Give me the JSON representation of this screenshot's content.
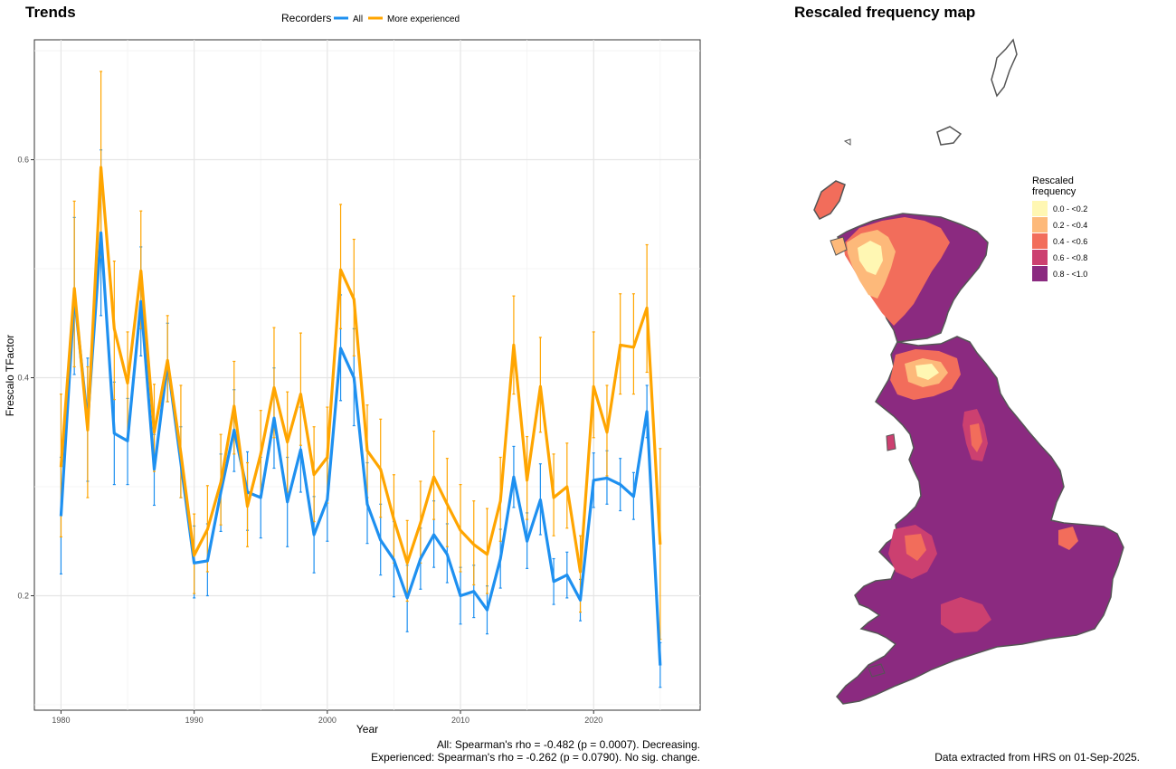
{
  "trends": {
    "title": "Trends",
    "legend_title": "Recorders",
    "caption_line1": "All: Spearman's rho = -0.482 (p = 0.0007). Decreasing.",
    "caption_line2": "Experienced: Spearman's rho = -0.262 (p = 0.0790). No sig. change."
  },
  "chart_data": {
    "type": "line",
    "xlabel": "Year",
    "ylabel": "Frescalo TFactor",
    "xlim": [
      1978,
      2028
    ],
    "ylim": [
      0.095,
      0.71
    ],
    "x_ticks": [
      1980,
      1990,
      2000,
      2010,
      2020
    ],
    "y_ticks": [
      0.2,
      0.4,
      0.6
    ],
    "y_tick_labels": [
      "0.2",
      "0.4",
      "0.6"
    ],
    "grid": true,
    "legend_position": "top",
    "x": [
      1980,
      1981,
      1982,
      1983,
      1984,
      1985,
      1986,
      1987,
      1988,
      1989,
      1990,
      1991,
      1992,
      1993,
      1994,
      1995,
      1996,
      1997,
      1998,
      1999,
      2000,
      2001,
      2002,
      2003,
      2004,
      2005,
      2006,
      2007,
      2008,
      2009,
      2010,
      2011,
      2012,
      2013,
      2014,
      2015,
      2016,
      2017,
      2018,
      2019,
      2020,
      2021,
      2022,
      2023,
      2024,
      2025
    ],
    "series": [
      {
        "name": "All",
        "color": "#1E90F0",
        "values": [
          0.273,
          0.475,
          0.36,
          0.533,
          0.349,
          0.342,
          0.47,
          0.316,
          0.414,
          0.322,
          0.23,
          0.232,
          0.295,
          0.352,
          0.295,
          0.29,
          0.363,
          0.286,
          0.334,
          0.256,
          0.288,
          0.427,
          0.4,
          0.284,
          0.251,
          0.233,
          0.198,
          0.234,
          0.256,
          0.238,
          0.2,
          0.204,
          0.187,
          0.234,
          0.309,
          0.25,
          0.288,
          0.213,
          0.219,
          0.196,
          0.306,
          0.308,
          0.302,
          0.291,
          0.369,
          0.136
        ],
        "lower": [
          0.22,
          0.403,
          0.305,
          0.457,
          0.302,
          0.302,
          0.42,
          0.283,
          0.378,
          0.29,
          0.198,
          0.2,
          0.259,
          0.314,
          0.26,
          0.253,
          0.317,
          0.245,
          0.295,
          0.221,
          0.25,
          0.379,
          0.356,
          0.248,
          0.219,
          0.199,
          0.167,
          0.206,
          0.226,
          0.212,
          0.174,
          0.18,
          0.165,
          0.207,
          0.281,
          0.225,
          0.256,
          0.192,
          0.198,
          0.177,
          0.281,
          0.284,
          0.278,
          0.27,
          0.345,
          0.116
        ],
        "upper": [
          0.327,
          0.547,
          0.418,
          0.609,
          0.396,
          0.381,
          0.52,
          0.348,
          0.45,
          0.355,
          0.264,
          0.266,
          0.33,
          0.389,
          0.332,
          0.327,
          0.409,
          0.327,
          0.373,
          0.291,
          0.326,
          0.476,
          0.445,
          0.322,
          0.284,
          0.268,
          0.228,
          0.262,
          0.287,
          0.266,
          0.226,
          0.228,
          0.209,
          0.261,
          0.337,
          0.276,
          0.321,
          0.234,
          0.24,
          0.215,
          0.331,
          0.333,
          0.326,
          0.313,
          0.393,
          0.157
        ]
      },
      {
        "name": "More experienced",
        "color": "#FFA500",
        "values": [
          0.318,
          0.482,
          0.352,
          0.593,
          0.445,
          0.395,
          0.498,
          0.35,
          0.416,
          0.331,
          0.237,
          0.261,
          0.304,
          0.374,
          0.282,
          0.33,
          0.391,
          0.341,
          0.385,
          0.311,
          0.327,
          0.499,
          0.472,
          0.333,
          0.316,
          0.27,
          0.23,
          0.267,
          0.309,
          0.284,
          0.26,
          0.247,
          0.238,
          0.287,
          0.43,
          0.306,
          0.392,
          0.29,
          0.3,
          0.222,
          0.392,
          0.35,
          0.43,
          0.428,
          0.464,
          0.247
        ],
        "lower": [
          0.254,
          0.41,
          0.29,
          0.51,
          0.38,
          0.345,
          0.445,
          0.314,
          0.378,
          0.29,
          0.202,
          0.222,
          0.265,
          0.33,
          0.245,
          0.292,
          0.345,
          0.295,
          0.338,
          0.268,
          0.285,
          0.445,
          0.42,
          0.29,
          0.272,
          0.23,
          0.195,
          0.23,
          0.27,
          0.245,
          0.222,
          0.21,
          0.202,
          0.25,
          0.385,
          0.27,
          0.35,
          0.255,
          0.262,
          0.185,
          0.345,
          0.31,
          0.385,
          0.385,
          0.405,
          0.16
        ],
        "upper": [
          0.385,
          0.562,
          0.41,
          0.681,
          0.507,
          0.442,
          0.553,
          0.394,
          0.457,
          0.393,
          0.275,
          0.301,
          0.348,
          0.415,
          0.322,
          0.37,
          0.446,
          0.387,
          0.441,
          0.355,
          0.373,
          0.559,
          0.527,
          0.375,
          0.362,
          0.311,
          0.269,
          0.305,
          0.351,
          0.326,
          0.302,
          0.287,
          0.28,
          0.327,
          0.475,
          0.346,
          0.437,
          0.33,
          0.34,
          0.255,
          0.442,
          0.393,
          0.477,
          0.477,
          0.522,
          0.335
        ]
      }
    ]
  },
  "map": {
    "title": "Rescaled frequency map",
    "legend_title_line1": "Rescaled",
    "legend_title_line2": "frequency",
    "legend_items": [
      {
        "label": "0.0 - <0.2",
        "color": "#FFF7B3"
      },
      {
        "label": "0.2 - <0.4",
        "color": "#FDB97A"
      },
      {
        "label": "0.4 - <0.6",
        "color": "#F26D5B"
      },
      {
        "label": "0.6 - <0.8",
        "color": "#CC4070"
      },
      {
        "label": "0.8 - <1.0",
        "color": "#8B2A80"
      }
    ],
    "outline_color": "#555555",
    "footnote": "Data extracted from HRS on 01-Sep-2025."
  }
}
